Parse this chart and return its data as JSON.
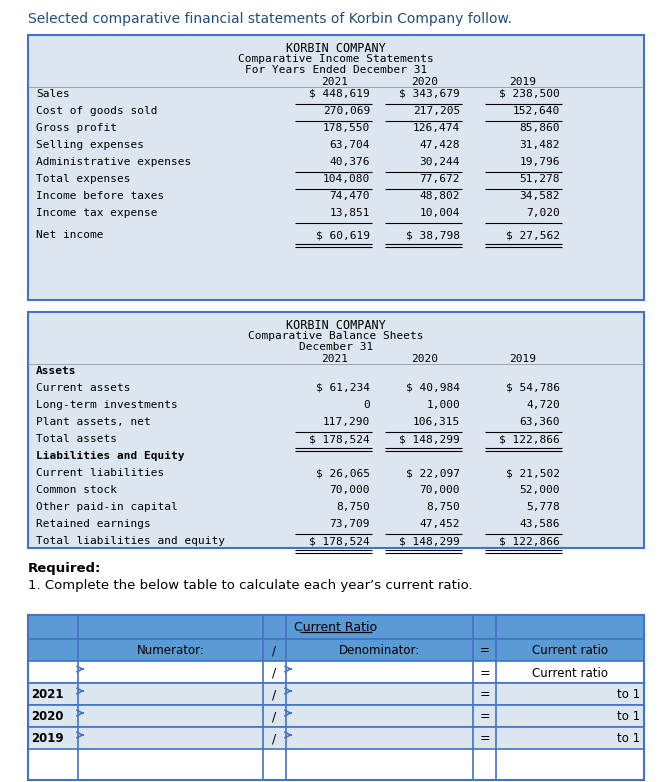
{
  "intro_text": "Selected comparative financial statements of Korbin Company follow.",
  "income_title1": "KORBIN COMPANY",
  "income_title2": "Comparative Income Statements",
  "income_title3": "For Years Ended December 31",
  "income_years": [
    "2021",
    "2020",
    "2019"
  ],
  "income_rows": [
    {
      "label": "Sales",
      "vals": [
        "$ 448,619",
        "$ 343,679",
        "$ 238,500"
      ],
      "bold": false,
      "bottom_border": true,
      "double_bottom": false,
      "extra_top_space": false
    },
    {
      "label": "Cost of goods sold",
      "vals": [
        "270,069",
        "217,205",
        "152,640"
      ],
      "bold": false,
      "bottom_border": true,
      "double_bottom": false,
      "extra_top_space": false
    },
    {
      "label": "Gross profit",
      "vals": [
        "178,550",
        "126,474",
        "85,860"
      ],
      "bold": false,
      "bottom_border": false,
      "double_bottom": false,
      "extra_top_space": false
    },
    {
      "label": "Selling expenses",
      "vals": [
        "63,704",
        "47,428",
        "31,482"
      ],
      "bold": false,
      "bottom_border": false,
      "double_bottom": false,
      "extra_top_space": false
    },
    {
      "label": "Administrative expenses",
      "vals": [
        "40,376",
        "30,244",
        "19,796"
      ],
      "bold": false,
      "bottom_border": true,
      "double_bottom": false,
      "extra_top_space": false
    },
    {
      "label": "Total expenses",
      "vals": [
        "104,080",
        "77,672",
        "51,278"
      ],
      "bold": false,
      "bottom_border": true,
      "double_bottom": false,
      "extra_top_space": false
    },
    {
      "label": "Income before taxes",
      "vals": [
        "74,470",
        "48,802",
        "34,582"
      ],
      "bold": false,
      "bottom_border": false,
      "double_bottom": false,
      "extra_top_space": false
    },
    {
      "label": "Income tax expense",
      "vals": [
        "13,851",
        "10,004",
        "7,020"
      ],
      "bold": false,
      "bottom_border": true,
      "double_bottom": false,
      "extra_top_space": false
    },
    {
      "label": "Net income",
      "vals": [
        "$ 60,619",
        "$ 38,798",
        "$ 27,562"
      ],
      "bold": false,
      "bottom_border": false,
      "double_bottom": true,
      "extra_top_space": true
    }
  ],
  "balance_title1": "KORBIN COMPANY",
  "balance_title2": "Comparative Balance Sheets",
  "balance_title3": "December 31",
  "balance_years": [
    "2021",
    "2020",
    "2019"
  ],
  "balance_rows": [
    {
      "label": "Assets",
      "vals": [
        "",
        "",
        ""
      ],
      "bold": true,
      "bottom_border": false,
      "double_bottom": false,
      "extra_top_space": false
    },
    {
      "label": "Current assets",
      "vals": [
        "$ 61,234",
        "$ 40,984",
        "$ 54,786"
      ],
      "bold": false,
      "bottom_border": false,
      "double_bottom": false,
      "extra_top_space": false
    },
    {
      "label": "Long-term investments",
      "vals": [
        "0",
        "1,000",
        "4,720"
      ],
      "bold": false,
      "bottom_border": false,
      "double_bottom": false,
      "extra_top_space": false
    },
    {
      "label": "Plant assets, net",
      "vals": [
        "117,290",
        "106,315",
        "63,360"
      ],
      "bold": false,
      "bottom_border": true,
      "double_bottom": false,
      "extra_top_space": false
    },
    {
      "label": "Total assets",
      "vals": [
        "$ 178,524",
        "$ 148,299",
        "$ 122,866"
      ],
      "bold": false,
      "bottom_border": false,
      "double_bottom": true,
      "extra_top_space": false
    },
    {
      "label": "Liabilities and Equity",
      "vals": [
        "",
        "",
        ""
      ],
      "bold": true,
      "bottom_border": false,
      "double_bottom": false,
      "extra_top_space": false
    },
    {
      "label": "Current liabilities",
      "vals": [
        "$ 26,065",
        "$ 22,097",
        "$ 21,502"
      ],
      "bold": false,
      "bottom_border": false,
      "double_bottom": false,
      "extra_top_space": false
    },
    {
      "label": "Common stock",
      "vals": [
        "70,000",
        "70,000",
        "52,000"
      ],
      "bold": false,
      "bottom_border": false,
      "double_bottom": false,
      "extra_top_space": false
    },
    {
      "label": "Other paid-in capital",
      "vals": [
        "8,750",
        "8,750",
        "5,778"
      ],
      "bold": false,
      "bottom_border": false,
      "double_bottom": false,
      "extra_top_space": false
    },
    {
      "label": "Retained earnings",
      "vals": [
        "73,709",
        "47,452",
        "43,586"
      ],
      "bold": false,
      "bottom_border": true,
      "double_bottom": false,
      "extra_top_space": false
    },
    {
      "label": "Total liabilities and equity",
      "vals": [
        "$ 178,524",
        "$ 148,299",
        "$ 122,866"
      ],
      "bold": false,
      "bottom_border": false,
      "double_bottom": true,
      "extra_top_space": false
    }
  ],
  "required_bold": "Required:",
  "required_line": "1. Complete the below table to calculate each year’s current ratio.",
  "cr_title": "Current Ratio",
  "cr_years": [
    "2021",
    "2020",
    "2019"
  ],
  "intro_color": "#1f4e79",
  "table_bg": "#dce6f1",
  "table_border": "#4472c4",
  "cr_header_bg": "#5b9bd5",
  "cr_data_bg": "#dce6f1",
  "cr_white_bg": "#ffffff"
}
